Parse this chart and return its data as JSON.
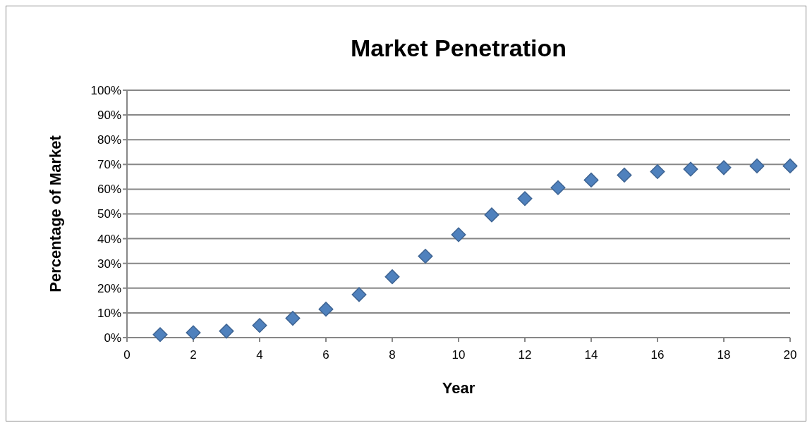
{
  "chart_data": {
    "type": "scatter",
    "title": "Market Penetration",
    "xlabel": "Year",
    "ylabel": "Percentage of Market",
    "x": [
      1,
      2,
      3,
      4,
      5,
      6,
      7,
      8,
      9,
      10,
      11,
      12,
      13,
      14,
      15,
      16,
      17,
      18,
      19,
      20
    ],
    "series": [
      {
        "color": "#4f81bd",
        "values": [
          1.2,
          2,
          2.6,
          4.9,
          7.8,
          11.5,
          17.4,
          24.6,
          32.9,
          41.6,
          49.6,
          56.2,
          60.6,
          63.7,
          65.7,
          67.1,
          68.1,
          68.7,
          69.4,
          69.4
        ]
      }
    ],
    "xlim": [
      0,
      20
    ],
    "xticks": [
      0,
      2,
      4,
      6,
      8,
      10,
      12,
      14,
      16,
      18,
      20
    ],
    "ylim": [
      0,
      100
    ],
    "yticks": [
      {
        "value": 0,
        "label": "0%"
      },
      {
        "value": 10,
        "label": "10%"
      },
      {
        "value": 20,
        "label": "20%"
      },
      {
        "value": 30,
        "label": "30%"
      },
      {
        "value": 40,
        "label": "40%"
      },
      {
        "value": 50,
        "label": "50%"
      },
      {
        "value": 60,
        "label": "60%"
      },
      {
        "value": 70,
        "label": "70%"
      },
      {
        "value": 80,
        "label": "80%"
      },
      {
        "value": 90,
        "label": "90%"
      },
      {
        "value": 100,
        "label": "100%"
      }
    ],
    "grid": "y",
    "marker": "diamond"
  }
}
